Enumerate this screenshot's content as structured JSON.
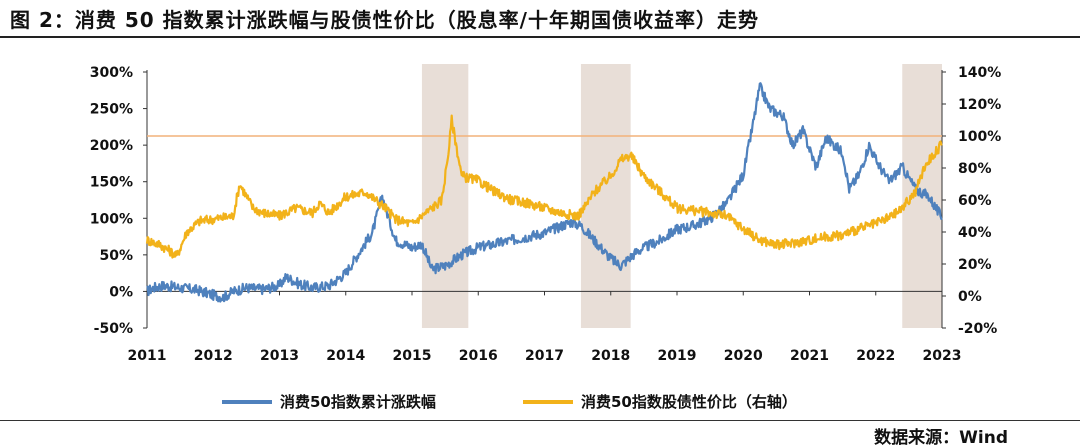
{
  "title": "图 2：消费 50 指数累计涨跌幅与股债性价比（股息率/十年期国债收益率）走势",
  "source": "数据来源：Wind",
  "chart_data": {
    "type": "line",
    "x_ticks": [
      "2011",
      "2012",
      "2013",
      "2014",
      "2015",
      "2016",
      "2017",
      "2018",
      "2019",
      "2020",
      "2021",
      "2022",
      "2023"
    ],
    "y_left": {
      "ticks": [
        "-50%",
        "0%",
        "50%",
        "100%",
        "150%",
        "200%",
        "250%",
        "300%"
      ],
      "range": [
        -50,
        300
      ]
    },
    "y_right": {
      "ticks": [
        "-20%",
        "0%",
        "20%",
        "40%",
        "60%",
        "80%",
        "100%",
        "120%",
        "140%"
      ],
      "range": [
        -20,
        140
      ]
    },
    "reference_line": {
      "axis": "right",
      "value": 100,
      "color": "#f2b27a"
    },
    "shaded_periods": [
      [
        2015.15,
        2015.85
      ],
      [
        2017.55,
        2018.3
      ],
      [
        2022.4,
        2023.0
      ]
    ],
    "legend_position": "bottom",
    "series": [
      {
        "name": "消费50指数累计涨跌幅",
        "axis": "left",
        "color": "#4f81bd",
        "x": [
          2011.0,
          2011.1,
          2011.25,
          2011.5,
          2011.75,
          2012.0,
          2012.15,
          2012.3,
          2012.5,
          2012.75,
          2013.0,
          2013.1,
          2013.3,
          2013.5,
          2013.75,
          2014.0,
          2014.25,
          2014.4,
          2014.55,
          2014.65,
          2014.75,
          2015.0,
          2015.15,
          2015.3,
          2015.5,
          2015.75,
          2016.0,
          2016.5,
          2017.0,
          2017.4,
          2017.55,
          2017.75,
          2018.0,
          2018.15,
          2018.4,
          2018.75,
          2019.0,
          2019.25,
          2019.5,
          2019.75,
          2020.0,
          2020.15,
          2020.25,
          2020.4,
          2020.6,
          2020.75,
          2020.9,
          2021.1,
          2021.25,
          2021.5,
          2021.6,
          2021.75,
          2021.9,
          2022.0,
          2022.2,
          2022.4,
          2022.6,
          2022.8,
          2023.0
        ],
        "y": [
          0,
          5,
          8,
          5,
          2,
          -5,
          -8,
          0,
          5,
          3,
          8,
          20,
          10,
          5,
          8,
          25,
          60,
          80,
          130,
          100,
          70,
          60,
          65,
          30,
          35,
          50,
          60,
          70,
          80,
          95,
          90,
          70,
          45,
          35,
          55,
          70,
          85,
          90,
          100,
          120,
          160,
          230,
          280,
          250,
          240,
          200,
          220,
          170,
          210,
          190,
          140,
          160,
          200,
          180,
          150,
          170,
          140,
          130,
          100
        ]
      },
      {
        "name": "消费50指数股债性价比（右轴）",
        "axis": "right",
        "color": "#f2b21a",
        "x": [
          2011.0,
          2011.2,
          2011.35,
          2011.45,
          2011.6,
          2011.8,
          2012.0,
          2012.3,
          2012.4,
          2012.6,
          2012.75,
          2013.0,
          2013.25,
          2013.5,
          2013.6,
          2013.75,
          2014.0,
          2014.3,
          2014.6,
          2014.75,
          2015.0,
          2015.15,
          2015.3,
          2015.45,
          2015.55,
          2015.6,
          2015.75,
          2016.0,
          2016.25,
          2016.5,
          2016.75,
          2017.0,
          2017.25,
          2017.5,
          2017.6,
          2017.75,
          2018.0,
          2018.15,
          2018.3,
          2018.5,
          2018.75,
          2019.0,
          2019.5,
          2019.75,
          2020.0,
          2020.25,
          2020.5,
          2020.75,
          2021.0,
          2021.25,
          2021.5,
          2021.6,
          2021.75,
          2022.0,
          2022.25,
          2022.4,
          2022.5,
          2022.6,
          2022.75,
          2023.0
        ],
        "y": [
          35,
          32,
          28,
          25,
          40,
          47,
          48,
          50,
          70,
          55,
          52,
          50,
          55,
          52,
          58,
          52,
          62,
          65,
          55,
          48,
          45,
          50,
          55,
          60,
          90,
          110,
          75,
          72,
          65,
          60,
          58,
          55,
          52,
          50,
          55,
          65,
          75,
          85,
          88,
          75,
          65,
          55,
          52,
          50,
          42,
          35,
          32,
          33,
          35,
          37,
          38,
          40,
          42,
          45,
          50,
          55,
          60,
          65,
          82,
          95
        ]
      }
    ]
  }
}
